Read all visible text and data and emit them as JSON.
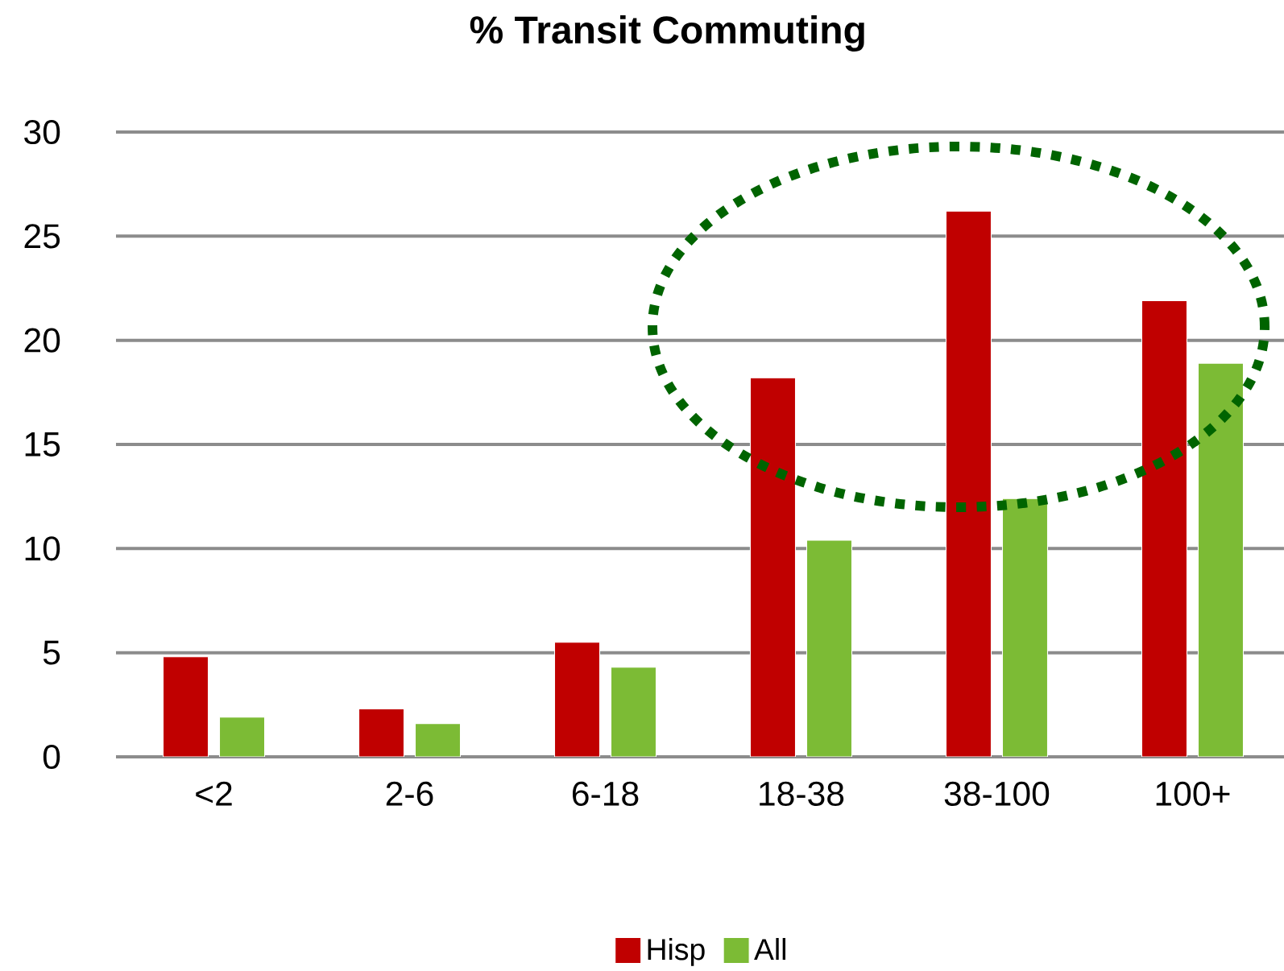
{
  "chart_data": {
    "type": "bar",
    "title": "% Transit Commuting",
    "categories": [
      "<2",
      "2-6",
      "6-18",
      "18-38",
      "38-100",
      "100+"
    ],
    "series": [
      {
        "name": "Hisp",
        "color": "#c00000",
        "values": [
          4.8,
          2.3,
          5.5,
          18.2,
          26.2,
          21.9
        ]
      },
      {
        "name": "All",
        "color": "#7cbb35",
        "values": [
          1.9,
          1.6,
          4.3,
          10.4,
          12.4,
          18.9
        ]
      }
    ],
    "ylim": [
      0,
      30
    ],
    "yticks": [
      0,
      5,
      10,
      15,
      20,
      25,
      30
    ],
    "grid": "y",
    "legend": "bottom"
  }
}
